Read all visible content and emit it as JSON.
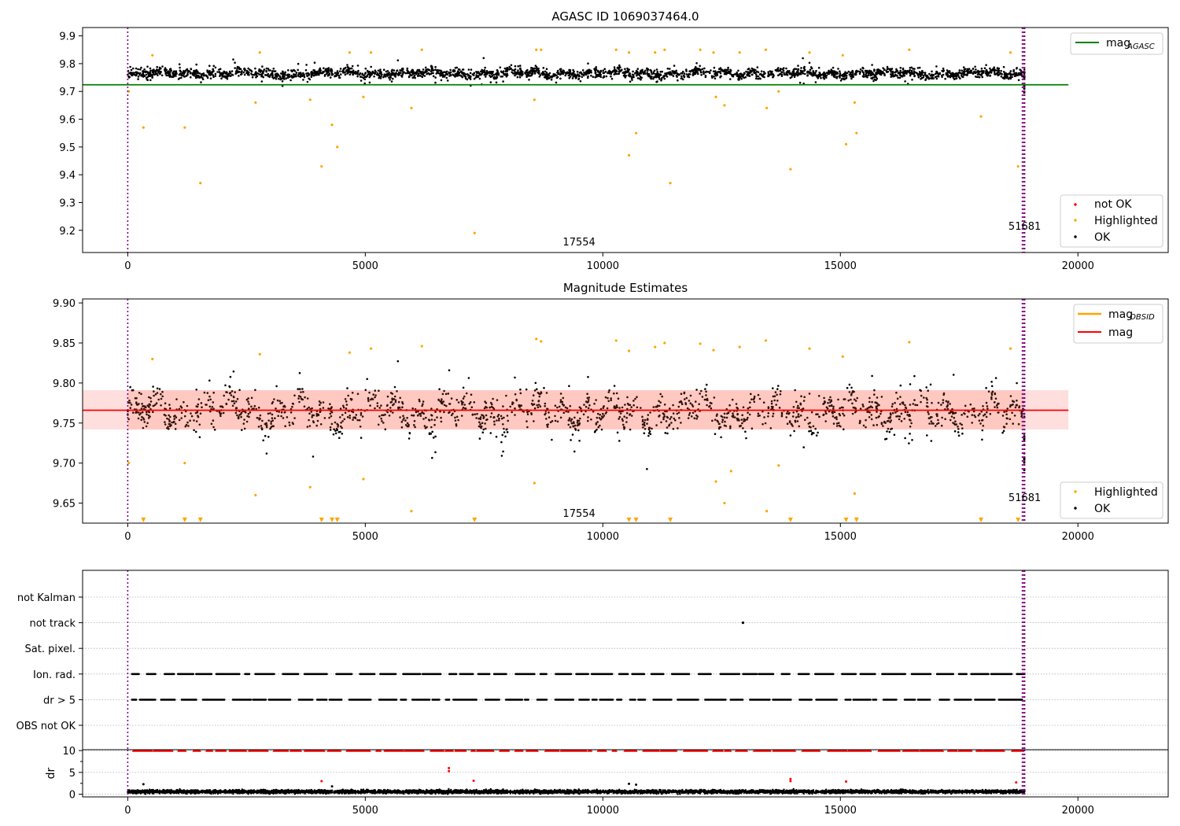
{
  "figure": {
    "background": "#ffffff"
  },
  "colors": {
    "ok": "#000000",
    "highlighted": "#ffa500",
    "not_ok": "#ff0000",
    "agasc_line": "#008000",
    "mag_line": "#ff0000",
    "mag_band": "#ffd6d6",
    "obsid_line": "#ffa500",
    "obs_marker": "#800080",
    "grid": "#b0b0b0"
  },
  "chart_data": [
    {
      "id": "agasc",
      "type": "scatter",
      "title": "AGASC ID 1069037464.0",
      "xlim": [
        -950,
        21900
      ],
      "ylim": [
        9.12,
        9.93
      ],
      "xticks": [
        0,
        5000,
        10000,
        15000,
        20000
      ],
      "yticks": [
        9.2,
        9.3,
        9.4,
        9.5,
        9.6,
        9.7,
        9.8,
        9.9
      ],
      "xtick_labels": [
        "0",
        "5000",
        "10000",
        "15000",
        "20000"
      ],
      "ytick_labels": [
        "9.2",
        "9.3",
        "9.4",
        "9.5",
        "9.6",
        "9.7",
        "9.8",
        "9.9"
      ],
      "ok_band": {
        "x": [
          0,
          18880
        ],
        "center": 9.765,
        "spread": 0.03
      },
      "hlines": [
        {
          "name": "mag_AGASC",
          "y": 9.724,
          "x": [
            -950,
            19800
          ],
          "color": "#008000"
        }
      ],
      "obsid_vlines": [
        0,
        18830,
        18860,
        18880
      ],
      "highlighted_points": [
        [
          330,
          9.57
        ],
        [
          1200,
          9.57
        ],
        [
          1530,
          9.37
        ],
        [
          2690,
          9.66
        ],
        [
          3840,
          9.67
        ],
        [
          4080,
          9.43
        ],
        [
          4300,
          9.58
        ],
        [
          4410,
          9.5
        ],
        [
          4960,
          9.68
        ],
        [
          5970,
          9.64
        ],
        [
          7300,
          9.19
        ],
        [
          8560,
          9.67
        ],
        [
          10550,
          9.47
        ],
        [
          10700,
          9.55
        ],
        [
          11420,
          9.37
        ],
        [
          12380,
          9.68
        ],
        [
          12560,
          9.65
        ],
        [
          13450,
          9.64
        ],
        [
          13700,
          9.7
        ],
        [
          13950,
          9.42
        ],
        [
          15120,
          9.51
        ],
        [
          15300,
          9.66
        ],
        [
          15340,
          9.55
        ],
        [
          17960,
          9.61
        ],
        [
          18740,
          9.43
        ],
        [
          20,
          9.7
        ],
        [
          520,
          9.83
        ],
        [
          2780,
          9.84
        ],
        [
          4670,
          9.84
        ],
        [
          5120,
          9.84
        ],
        [
          6190,
          9.85
        ],
        [
          8600,
          9.85
        ],
        [
          8700,
          9.85
        ],
        [
          10280,
          9.85
        ],
        [
          10550,
          9.84
        ],
        [
          11100,
          9.84
        ],
        [
          11300,
          9.85
        ],
        [
          12050,
          9.85
        ],
        [
          12330,
          9.84
        ],
        [
          12880,
          9.84
        ],
        [
          13430,
          9.85
        ],
        [
          14350,
          9.84
        ],
        [
          15050,
          9.83
        ],
        [
          16450,
          9.85
        ],
        [
          18580,
          9.84
        ]
      ],
      "bottom_labels": [
        {
          "text": "17554",
          "x": 9500
        },
        {
          "text": "51681",
          "x": 18880
        }
      ],
      "legend_top": [
        {
          "label": "mag",
          "sub": "AGASC",
          "color": "#008000",
          "kind": "line"
        }
      ],
      "legend_bottom": [
        {
          "label": "not OK",
          "color": "#ff0000"
        },
        {
          "label": "Highlighted",
          "color": "#ffa500"
        },
        {
          "label": "OK",
          "color": "#000000"
        }
      ]
    },
    {
      "id": "estimates",
      "type": "scatter",
      "title": "Magnitude Estimates",
      "xlim": [
        -950,
        21900
      ],
      "ylim": [
        9.625,
        9.905
      ],
      "xticks": [
        0,
        5000,
        10000,
        15000,
        20000
      ],
      "yticks": [
        9.65,
        9.7,
        9.75,
        9.8,
        9.85,
        9.9
      ],
      "xtick_labels": [
        "0",
        "5000",
        "10000",
        "15000",
        "20000"
      ],
      "ytick_labels": [
        "9.65",
        "9.70",
        "9.75",
        "9.80",
        "9.85",
        "9.90"
      ],
      "ok_band": {
        "x": [
          0,
          18880
        ],
        "center": 9.765,
        "spread": 0.03
      },
      "hlines": [
        {
          "name": "mag",
          "y": 9.766,
          "x": [
            -950,
            19800
          ],
          "color": "#ff0000"
        }
      ],
      "band": {
        "y": [
          9.742,
          9.791
        ],
        "x": [
          -950,
          19800
        ]
      },
      "obsid_vlines": [
        0,
        18830,
        18860,
        18880
      ],
      "highlighted_points": [
        [
          20,
          9.7
        ],
        [
          1200,
          9.7
        ],
        [
          2690,
          9.66
        ],
        [
          3840,
          9.67
        ],
        [
          4960,
          9.68
        ],
        [
          5970,
          9.64
        ],
        [
          8560,
          9.675
        ],
        [
          12380,
          9.677
        ],
        [
          12560,
          9.65
        ],
        [
          12700,
          9.69
        ],
        [
          13450,
          9.64
        ],
        [
          13700,
          9.697
        ],
        [
          15300,
          9.662
        ],
        [
          520,
          9.83
        ],
        [
          2780,
          9.836
        ],
        [
          4670,
          9.838
        ],
        [
          5120,
          9.843
        ],
        [
          6190,
          9.846
        ],
        [
          8600,
          9.855
        ],
        [
          8700,
          9.852
        ],
        [
          10280,
          9.853
        ],
        [
          10550,
          9.84
        ],
        [
          11100,
          9.845
        ],
        [
          11300,
          9.85
        ],
        [
          12050,
          9.849
        ],
        [
          12330,
          9.841
        ],
        [
          12880,
          9.845
        ],
        [
          13430,
          9.853
        ],
        [
          14350,
          9.843
        ],
        [
          15050,
          9.833
        ],
        [
          16450,
          9.851
        ],
        [
          18580,
          9.843
        ]
      ],
      "clipped_markers": [
        330,
        1200,
        1530,
        4080,
        4300,
        4410,
        7300,
        10550,
        10700,
        11420,
        13950,
        15120,
        15340,
        17960,
        18740
      ],
      "clipped_marker_value": 9.629,
      "bottom_labels": [
        {
          "text": "17554",
          "x": 9500
        },
        {
          "text": "51681",
          "x": 18880
        }
      ],
      "legend_top": [
        {
          "label": "mag",
          "sub": "OBSID",
          "color": "#ffa500",
          "kind": "line"
        },
        {
          "label": "mag",
          "sub": "",
          "color": "#ff0000",
          "kind": "line"
        }
      ],
      "legend_bottom": [
        {
          "label": "Highlighted",
          "color": "#ffa500"
        },
        {
          "label": "OK",
          "color": "#000000"
        }
      ]
    },
    {
      "id": "flags",
      "type": "scatter",
      "title": "",
      "xlim": [
        -950,
        21900
      ],
      "categories": [
        "not Kalman",
        "not track",
        "Sat. pixel.",
        "Ion. rad.",
        "dr > 5",
        "OBS not OK"
      ],
      "obsid_vlines": [
        0,
        18830,
        18860,
        18880
      ],
      "flag_rows": [
        {
          "category": "Ion. rad.",
          "x": [
            90,
            18880
          ]
        },
        {
          "category": "dr > 5",
          "x": [
            90,
            18880
          ]
        }
      ],
      "isolated_points": [
        {
          "category": "not track",
          "x": 12950
        }
      ]
    },
    {
      "id": "dr",
      "type": "scatter",
      "title": "",
      "ylabel": "dr",
      "xlim": [
        -950,
        21900
      ],
      "ylim": [
        -0.6,
        10.2
      ],
      "yticks": [
        0,
        5,
        10
      ],
      "ytick_labels": [
        "0",
        "5",
        "10"
      ],
      "xticks": [
        0,
        5000,
        10000,
        15000,
        20000
      ],
      "xtick_labels": [
        "0",
        "5000",
        "10000",
        "15000",
        "20000"
      ],
      "capped_value": 10,
      "base_band": {
        "x": [
          0,
          18880
        ],
        "center": 0.6,
        "spread": 0.4
      },
      "obsid_vlines": [
        0,
        18830,
        18860,
        18880
      ],
      "outlier_points": [
        [
          330,
          2.3
        ],
        [
          4080,
          3.0
        ],
        [
          6760,
          6.0
        ],
        [
          6760,
          5.3
        ],
        [
          7280,
          3.1
        ],
        [
          10550,
          2.4
        ],
        [
          10700,
          2.2
        ],
        [
          13950,
          3.5
        ],
        [
          13950,
          3.0
        ],
        [
          15120,
          2.9
        ],
        [
          18700,
          2.7
        ],
        [
          4300,
          1.8
        ]
      ]
    }
  ]
}
